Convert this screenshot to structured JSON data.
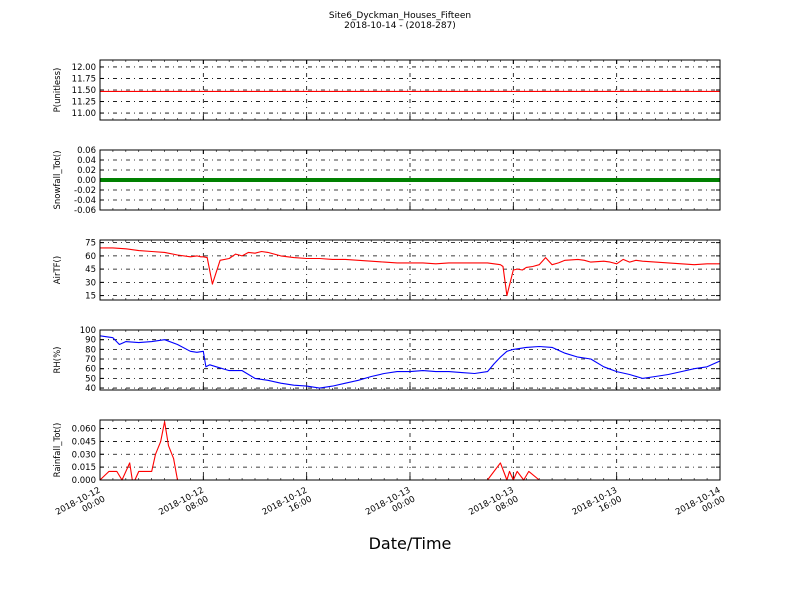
{
  "figure": {
    "title": "Site6_Dyckman_Houses_Fifteen",
    "subtitle": "2018-10-14 - (2018-287)",
    "xlabel": "Date/Time"
  },
  "chart_data": {
    "type": "line",
    "title": "Site6_Dyckman_Houses_Fifteen",
    "subtitle": "2018-10-14 - (2018-287)",
    "xlabel": "Date/Time",
    "x_tick_labels": [
      [
        "2018-10-12",
        "00:00"
      ],
      [
        "2018-10-12",
        "08:00"
      ],
      [
        "2018-10-12",
        "16:00"
      ],
      [
        "2018-10-13",
        "00:00"
      ],
      [
        "2018-10-13",
        "08:00"
      ],
      [
        "2018-10-13",
        "16:00"
      ],
      [
        "2018-10-14",
        "00:00"
      ]
    ],
    "x_range_hours": [
      0,
      48
    ],
    "grid": true,
    "panels": [
      {
        "ylabel": "P(unitless)",
        "ylim": [
          10.85,
          12.15
        ],
        "yticks": [
          "12.00",
          "11.75",
          "11.50",
          "11.25",
          "11.00"
        ],
        "yticks_values": [
          12.0,
          11.75,
          11.5,
          11.25,
          11.0
        ],
        "color": "#ff0000",
        "markers": false,
        "x": [
          0,
          48
        ],
        "y": [
          11.47,
          11.47
        ]
      },
      {
        "ylabel": "Snowfall_Tot()",
        "ylim": [
          -0.06,
          0.06
        ],
        "yticks": [
          "0.06",
          "0.04",
          "0.02",
          "0.00",
          "-0.02",
          "-0.04",
          "-0.06"
        ],
        "yticks_values": [
          0.06,
          0.04,
          0.02,
          0.0,
          -0.02,
          -0.04,
          -0.06
        ],
        "color": "#008000",
        "markers": true,
        "x": [
          0,
          48
        ],
        "y": [
          0,
          0
        ]
      },
      {
        "ylabel": "AirTF()",
        "ylim": [
          10,
          78
        ],
        "yticks": [
          "75",
          "60",
          "45",
          "30",
          "15"
        ],
        "yticks_values": [
          75,
          60,
          45,
          30,
          15
        ],
        "color": "#ff0000",
        "markers": false,
        "x": [
          0,
          1,
          2,
          3,
          4,
          5,
          6,
          7,
          7.5,
          7.8,
          8.0,
          8.3,
          8.7,
          9.3,
          10,
          10.5,
          11,
          11.5,
          12,
          12.5,
          13,
          14,
          15,
          16,
          17,
          18,
          19,
          20,
          21,
          22,
          23,
          24,
          25,
          26,
          27,
          28,
          29,
          30,
          30.5,
          31,
          31.2,
          31.5,
          32,
          32.3,
          32.7,
          33,
          33.5,
          34,
          34.5,
          35,
          35.5,
          36,
          37,
          37.5,
          38,
          39,
          39.5,
          40,
          40.5,
          41,
          41.5,
          42,
          43,
          44,
          45,
          46,
          47,
          48
        ],
        "y": [
          69,
          69,
          68,
          66,
          65,
          64,
          61,
          59,
          60,
          59,
          59,
          58,
          28,
          55,
          57,
          62,
          60,
          64,
          63,
          65,
          64,
          60,
          58,
          57,
          57,
          56,
          56,
          55,
          54,
          53,
          52,
          52,
          52,
          51,
          52,
          52,
          52,
          52,
          51,
          50,
          48,
          15,
          44,
          45,
          44,
          47,
          48,
          50,
          58,
          50,
          52,
          55,
          56,
          55,
          53,
          54,
          53,
          51,
          56,
          53,
          55,
          54,
          53,
          52,
          51,
          50,
          51,
          51
        ]
      },
      {
        "ylabel": "RH(%)",
        "ylim": [
          38,
          100
        ],
        "yticks": [
          "100",
          "90",
          "80",
          "70",
          "60",
          "50",
          "40"
        ],
        "yticks_values": [
          100,
          90,
          80,
          70,
          60,
          50,
          40
        ],
        "color": "#0000ff",
        "markers": false,
        "x": [
          0,
          1,
          1.5,
          2,
          3,
          4,
          5,
          6,
          7,
          7.5,
          8,
          8.2,
          8.5,
          9,
          10,
          11,
          12,
          13,
          14,
          15,
          16,
          17,
          18,
          19,
          20,
          21,
          22,
          23,
          24,
          25,
          26,
          27,
          28,
          29,
          30,
          30.5,
          31,
          31.5,
          32,
          33,
          34,
          35,
          36,
          37,
          38,
          39,
          40,
          41,
          42,
          43,
          44,
          45,
          46,
          47,
          47.5,
          48
        ],
        "y": [
          94,
          92,
          85,
          88,
          87,
          88,
          90,
          85,
          78,
          77,
          78,
          62,
          64,
          62,
          58,
          58,
          50,
          48,
          45,
          43,
          42,
          40,
          42,
          45,
          48,
          52,
          55,
          57,
          57,
          58,
          57,
          57,
          56,
          55,
          57,
          65,
          72,
          78,
          80,
          82,
          83,
          82,
          76,
          72,
          70,
          62,
          57,
          54,
          50,
          52,
          54,
          57,
          60,
          62,
          65,
          68
        ]
      },
      {
        "ylabel": "Rainfall_Tot()",
        "ylim": [
          0,
          0.07
        ],
        "yticks": [
          "0.060",
          "0.045",
          "0.030",
          "0.015",
          "0.000"
        ],
        "yticks_values": [
          0.06,
          0.045,
          0.03,
          0.015,
          0.0
        ],
        "color": "#ff0000",
        "markers": false,
        "x": [
          0,
          0.7,
          1.3,
          1.7,
          2.3,
          2.5,
          2.7,
          3.0,
          4.0,
          4.3,
          4.7,
          5.0,
          5.3,
          5.7,
          6.0,
          9.0,
          30.0,
          31.0,
          31.5,
          31.7,
          32.0,
          32.3,
          32.8,
          33.2,
          34.0,
          48.0
        ],
        "y": [
          0,
          0.01,
          0.01,
          0,
          0.02,
          0,
          0,
          0.01,
          0.01,
          0.03,
          0.045,
          0.068,
          0.04,
          0.025,
          0,
          0,
          0,
          0.02,
          0,
          0.01,
          0,
          0.01,
          0,
          0.01,
          0,
          0
        ]
      }
    ]
  }
}
